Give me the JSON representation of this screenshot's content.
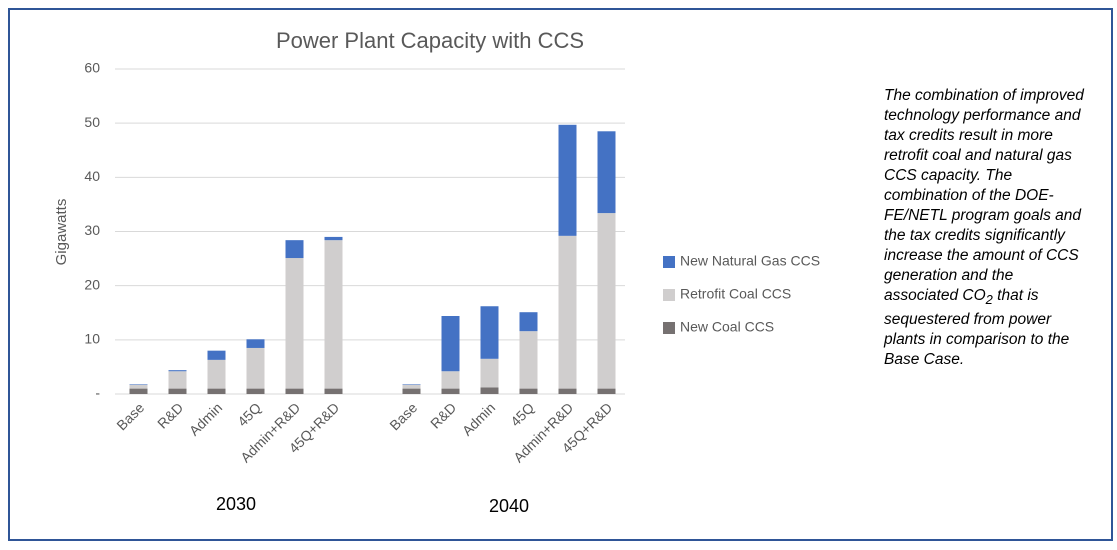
{
  "chart_data": {
    "type": "stacked_bar",
    "title": "Power Plant Capacity with CCS",
    "y_label": "Gigawatts",
    "categories": [
      "Base",
      "R&D",
      "Admin",
      "45Q",
      "Admin+R&D",
      "45Q+R&D",
      null,
      "Base",
      "R&D",
      "Admin",
      "45Q",
      "Admin+R&D",
      "45Q+R&D"
    ],
    "groups": [
      {
        "label": "2030",
        "from": 0,
        "to": 5
      },
      {
        "label": "2040",
        "from": 7,
        "to": 12
      }
    ],
    "series": [
      {
        "name": "New Coal CCS",
        "color": "#767171",
        "values": [
          1.0,
          1.0,
          1.0,
          1.0,
          1.0,
          1.0,
          null,
          1.0,
          1.0,
          1.2,
          1.0,
          1.0,
          1.0
        ]
      },
      {
        "name": "Retrofit Coal CCS",
        "color": "#d0cece",
        "values": [
          0.7,
          3.2,
          5.3,
          7.5,
          24.1,
          27.4,
          null,
          0.7,
          3.2,
          5.3,
          10.6,
          28.2,
          32.4
        ]
      },
      {
        "name": "New Natural Gas CCS",
        "color": "#4472c4",
        "values": [
          0.1,
          0.2,
          1.7,
          1.6,
          3.3,
          0.6,
          null,
          0.1,
          10.2,
          9.7,
          3.5,
          20.5,
          15.1
        ]
      }
    ],
    "ylim": [
      0,
      60
    ],
    "yticks": [
      {
        "value": 0,
        "label": "-"
      },
      10,
      20,
      30,
      40,
      50,
      60
    ],
    "grid": true,
    "legend": "right",
    "note": [
      "The combination of improved technology performance and tax credits result in more retrofit coal and natural gas CCS capacity. The combination of the DOE-FE/NETL program goals and the tax credits significantly increase the amount of CCS generation and the associated CO",
      "2",
      " that is sequestered from power plants in comparison to the Base Case."
    ]
  }
}
